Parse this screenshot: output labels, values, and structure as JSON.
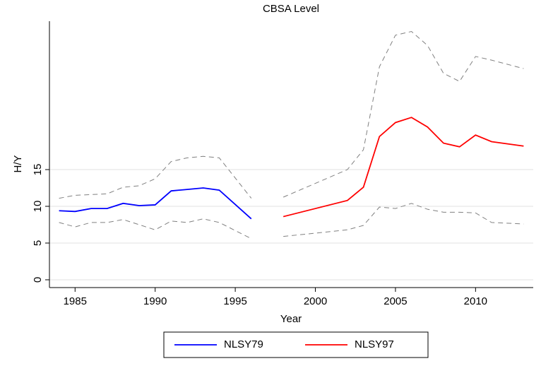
{
  "chart_data": {
    "type": "line",
    "title": "CBSA Level",
    "xlabel": "Year",
    "ylabel": "H/Y",
    "xlim": [
      1983.4,
      2013.6
    ],
    "ylim": [
      -1.06,
      35.2
    ],
    "xticks": [
      1985,
      1990,
      1995,
      2000,
      2005,
      2010
    ],
    "yticks": [
      0,
      5,
      10,
      15
    ],
    "grid": true,
    "legend": "bottom",
    "series": [
      {
        "name": "NLSY79",
        "color": "#0000ff",
        "x": [
          1984,
          1985,
          1986,
          1987,
          1988,
          1989,
          1990,
          1991,
          1992,
          1993,
          1994,
          1996
        ],
        "values": [
          9.4,
          9.3,
          9.7,
          9.7,
          10.4,
          10.1,
          10.2,
          12.1,
          12.3,
          12.5,
          12.2,
          8.3
        ]
      },
      {
        "name": "NLSY97",
        "color": "#ff0000",
        "x": [
          1998,
          2002,
          2003,
          2004,
          2005,
          2006,
          2007,
          2008,
          2009,
          2010,
          2011,
          2013
        ],
        "values": [
          8.6,
          10.8,
          12.6,
          19.5,
          21.4,
          22.1,
          20.8,
          18.6,
          18.1,
          19.7,
          18.8,
          18.2
        ]
      },
      {
        "color": "#808080",
        "dashed": true,
        "x": [
          1984,
          1985,
          1986,
          1987,
          1988,
          1989,
          1990,
          1991,
          1992,
          1993,
          1994,
          1996
        ],
        "values": [
          11.1,
          11.5,
          11.6,
          11.7,
          12.6,
          12.8,
          13.75,
          16.1,
          16.6,
          16.8,
          16.6,
          11.1
        ]
      },
      {
        "color": "#808080",
        "dashed": true,
        "x": [
          1984,
          1985,
          1986,
          1987,
          1988,
          1989,
          1990,
          1991,
          1992,
          1993,
          1994,
          1996
        ],
        "values": [
          7.8,
          7.2,
          7.8,
          7.8,
          8.2,
          7.5,
          6.8,
          8.0,
          7.8,
          8.3,
          7.8,
          5.6
        ]
      },
      {
        "color": "#808080",
        "dashed": true,
        "x": [
          1998,
          2002,
          2003,
          2004,
          2005,
          2006,
          2007,
          2008,
          2009,
          2010,
          2011,
          2013
        ],
        "values": [
          11.25,
          15,
          17.7,
          29.0,
          33.3,
          33.8,
          31.9,
          28.1,
          27.0,
          30.4,
          29.9,
          28.75
        ]
      },
      {
        "color": "#808080",
        "dashed": true,
        "x": [
          1998,
          2002,
          2003,
          2004,
          2005,
          2006,
          2007,
          2008,
          2009,
          2010,
          2011,
          2013
        ],
        "values": [
          5.9,
          6.8,
          7.4,
          9.9,
          9.7,
          10.4,
          9.6,
          9.2,
          9.2,
          9.1,
          7.8,
          7.6
        ]
      }
    ]
  }
}
